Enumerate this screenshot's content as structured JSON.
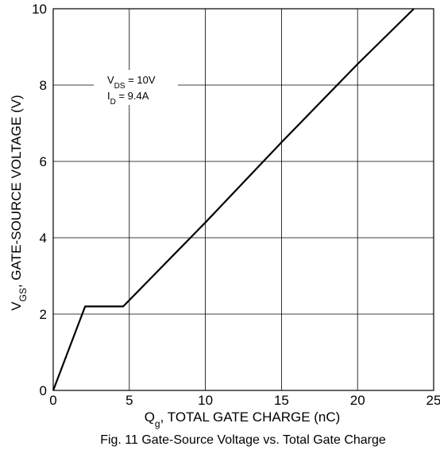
{
  "chart_data": {
    "type": "line",
    "title": "Fig. 11 Gate-Source Voltage vs. Total Gate Charge",
    "xlabel": {
      "base": "Q",
      "sub": "g",
      "rest": ", TOTAL GATE CHARGE (nC)"
    },
    "ylabel": {
      "base": "V",
      "sub": "GS",
      "rest": ", GATE-SOURCE VOLTAGE (V)"
    },
    "xlim": [
      0,
      25
    ],
    "ylim": [
      0,
      10
    ],
    "x_ticks": [
      "0",
      "5",
      "10",
      "15",
      "20",
      "25"
    ],
    "y_ticks": [
      "0",
      "2",
      "4",
      "6",
      "8",
      "10"
    ],
    "grid": true,
    "annotations": [
      {
        "base": "V",
        "sub": "DS",
        "rest": " = 10V"
      },
      {
        "base": "I",
        "sub": "D",
        "rest": " = 9.4A"
      }
    ],
    "series": [
      {
        "points": [
          {
            "x": 0,
            "y": 0
          },
          {
            "x": 2.1,
            "y": 2.2
          },
          {
            "x": 4.6,
            "y": 2.2
          },
          {
            "x": 10,
            "y": 4.4
          },
          {
            "x": 15,
            "y": 6.5
          },
          {
            "x": 20,
            "y": 8.55
          },
          {
            "x": 23.7,
            "y": 10
          }
        ]
      }
    ]
  }
}
